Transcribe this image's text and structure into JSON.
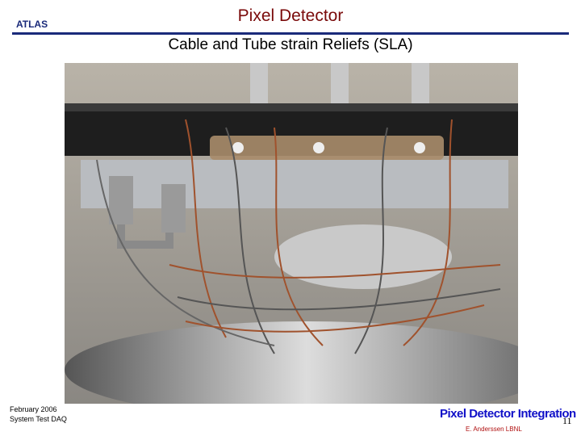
{
  "header": {
    "logo": "ATLAS",
    "title": "Pixel Detector",
    "subtitle": "Cable and Tube strain Reliefs (SLA)"
  },
  "footer": {
    "date": "February 2006",
    "event": "System Test DAQ",
    "project": "Pixel Detector Integration",
    "author": "E. Anderssen LBNL",
    "page": "11"
  }
}
